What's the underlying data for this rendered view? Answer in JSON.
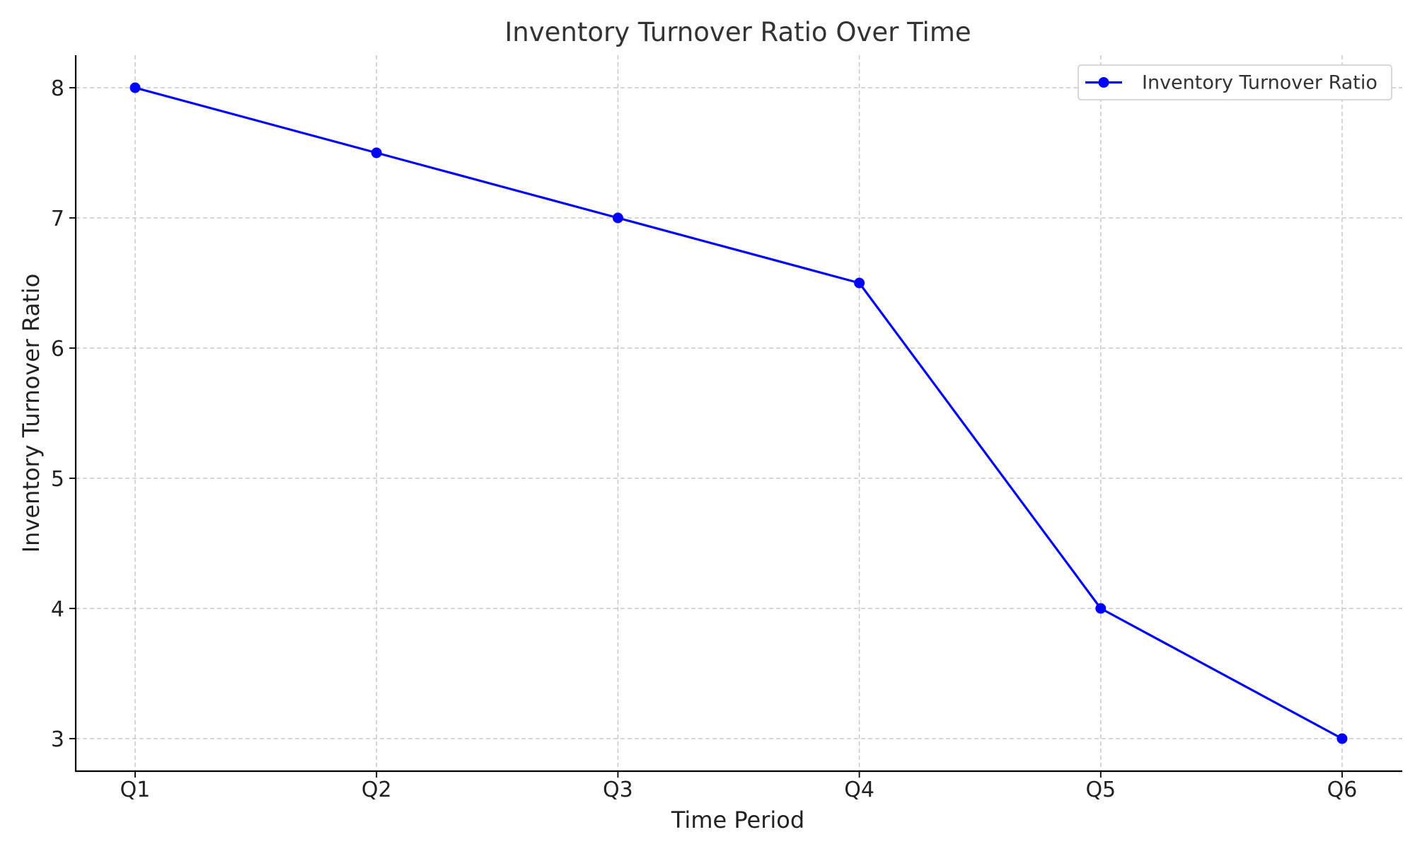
{
  "chart_data": {
    "type": "line",
    "title": "Inventory Turnover Ratio Over Time",
    "xlabel": "Time Period",
    "ylabel": "Inventory Turnover Ratio",
    "categories": [
      "Q1",
      "Q2",
      "Q3",
      "Q4",
      "Q5",
      "Q6"
    ],
    "series": [
      {
        "name": "Inventory Turnover Ratio",
        "values": [
          8.0,
          7.5,
          7.0,
          6.5,
          4.0,
          3.0
        ],
        "color": "#0000ff",
        "marker": "circle"
      }
    ],
    "ylim": [
      2.75,
      8.25
    ],
    "yticks": [
      3,
      4,
      5,
      6,
      7,
      8
    ],
    "grid": true,
    "legend_position": "top-right"
  }
}
